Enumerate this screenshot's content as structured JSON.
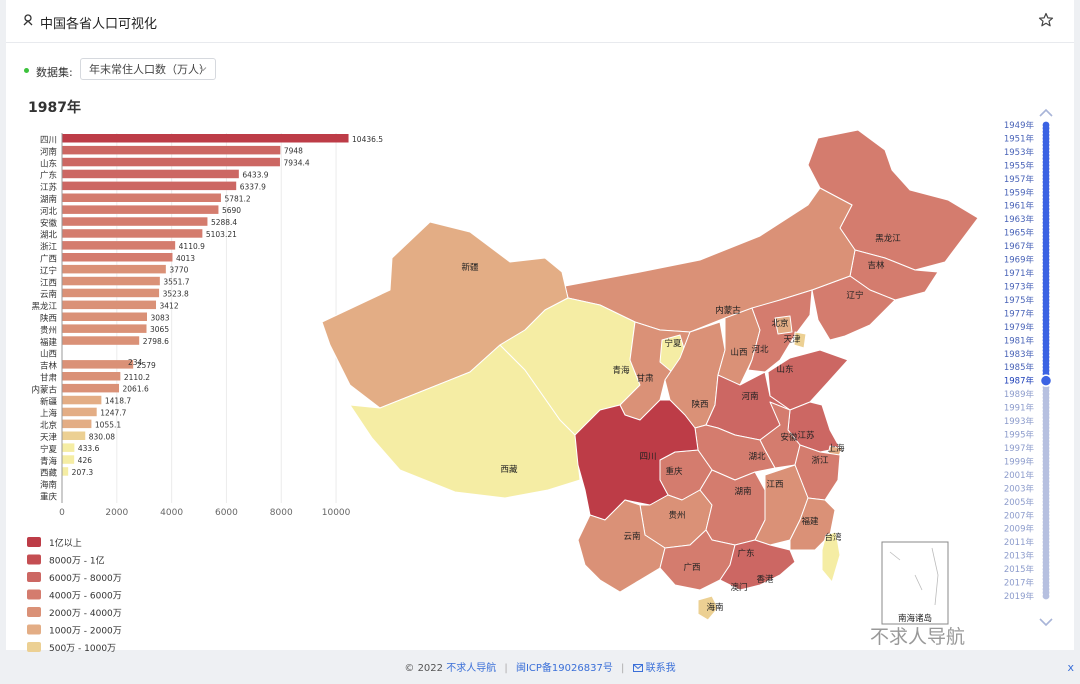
{
  "page": {
    "title": "中国各省人口可视化",
    "dataset_label": "数据集:",
    "dataset_value": "年末常住人口数（万人）",
    "year": "1987年"
  },
  "footer": {
    "copyright": "© 2022",
    "site": "不求人导航",
    "icp": "闽ICP备19026837号",
    "contact": "联系我",
    "close": "x"
  },
  "watermark": "不求人导航",
  "icons": {
    "lead": "map-pin-icon",
    "star": "star-icon",
    "select": "chevron-down-icon",
    "timeline_up": "chevron-up-icon",
    "timeline_down": "chevron-down-icon",
    "contact": "mail-icon"
  },
  "colors": {
    "scale": [
      "#bd3c47",
      "#c44e52",
      "#cc6763",
      "#d47c6e",
      "#da9177",
      "#e3ad85",
      "#ecd093",
      "#f5eda4"
    ]
  },
  "chart_data": {
    "type": "bar",
    "orientation": "horizontal",
    "categories": [
      "四川",
      "河南",
      "山东",
      "广东",
      "江苏",
      "湖南",
      "河北",
      "安徽",
      "湖北",
      "浙江",
      "广西",
      "辽宁",
      "江西",
      "云南",
      "黑龙江",
      "陕西",
      "贵州",
      "福建",
      "山西",
      "吉林",
      "甘肃",
      "内蒙古",
      "新疆",
      "上海",
      "北京",
      "天津",
      "宁夏",
      "青海",
      "西藏",
      "海南",
      "重庆"
    ],
    "values": [
      10436.5,
      7948,
      7934.4,
      6433.9,
      6337.9,
      5781.2,
      5690,
      5288.4,
      5103.21,
      4110.9,
      4013,
      3770,
      3551.7,
      3523.8,
      3412,
      3083,
      3065,
      2798.6,
      null,
      2579,
      2110.2,
      2061.6,
      1418.7,
      1247.7,
      1055.1,
      830.08,
      433.6,
      426,
      207.3,
      null,
      null
    ],
    "value_labels": [
      "10436.5",
      "7948",
      "7934.4",
      "6433.9",
      "6337.9",
      "5781.2",
      "5690",
      "5288.4",
      "5103.21",
      "4110.9",
      "4013",
      "3770",
      "3551.7",
      "3523.8",
      "3412",
      "3083",
      "3065",
      "2798.6",
      "",
      "2579",
      "2110.2",
      "2061.6",
      "1418.7",
      "1247.7",
      "1055.1",
      "830.08",
      "433.6",
      "426",
      "207.3",
      "",
      ""
    ],
    "x_ticks": [
      0,
      2000,
      4000,
      6000,
      8000,
      10000
    ],
    "xlim": [
      0,
      10800
    ],
    "grid": true,
    "overlap_label": "234",
    "legend": [
      "1亿以上",
      "8000万 - 1亿",
      "6000万 - 8000万",
      "4000万 - 6000万",
      "2000万 - 4000万",
      "1000万 - 2000万",
      "500万 - 1000万"
    ],
    "map_labels": [
      "黑龙江",
      "吉林",
      "辽宁",
      "内蒙古",
      "北京",
      "天津",
      "河北",
      "山西",
      "山东",
      "河南",
      "宁夏",
      "甘肃",
      "青海",
      "新疆",
      "西藏",
      "四川",
      "重庆",
      "陕西",
      "湖北",
      "安徽",
      "江苏",
      "上海",
      "浙江",
      "湖南",
      "江西",
      "福建",
      "台湾",
      "贵州",
      "云南",
      "广西",
      "广东",
      "香港",
      "澳门",
      "海南",
      "南海诸岛"
    ],
    "timeline": [
      "1949年",
      "1951年",
      "1953年",
      "1955年",
      "1957年",
      "1959年",
      "1961年",
      "1963年",
      "1965年",
      "1967年",
      "1969年",
      "1971年",
      "1973年",
      "1975年",
      "1977年",
      "1979年",
      "1981年",
      "1983年",
      "1985年",
      "1987年",
      "1989年",
      "1991年",
      "1993年",
      "1995年",
      "1997年",
      "1999年",
      "2001年",
      "2003年",
      "2005年",
      "2007年",
      "2009年",
      "2011年",
      "2013年",
      "2015年",
      "2017年",
      "2019年"
    ],
    "timeline_current": "1987年"
  }
}
